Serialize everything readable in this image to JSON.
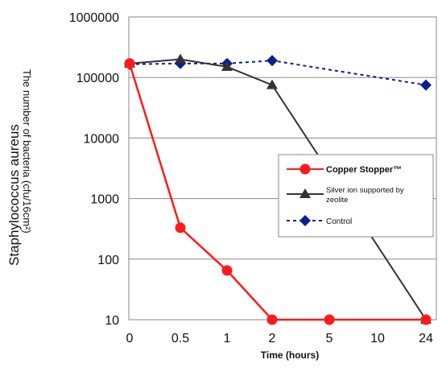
{
  "chart_data": {
    "type": "line",
    "title": "",
    "xlabel": "Time (hours)",
    "ylabel_outer": "Staphylococcus aureus",
    "ylabel_inner": "The number of bacteria (cfu/16cm²)",
    "x_tick_labels": [
      "0",
      "0.5",
      "1",
      "2",
      "5",
      "10",
      "24"
    ],
    "y_scale": "log",
    "y_tick_labels": [
      "1000000",
      "100000",
      "10000",
      "1000",
      "100",
      "10"
    ],
    "ylim": [
      10,
      1000000
    ],
    "grid": true,
    "legend_position": "center-right",
    "series": [
      {
        "name": "Copper Stopper™",
        "color": "#ff1a1a",
        "marker": "circle",
        "line_style": "solid",
        "x": [
          0,
          0.5,
          1,
          2,
          5,
          24
        ],
        "values": [
          170000,
          330,
          65,
          10,
          10,
          10
        ]
      },
      {
        "name": "Silver ion supported by zeolite",
        "color": "#333333",
        "marker": "triangle",
        "line_style": "solid",
        "x": [
          0,
          0.5,
          1,
          2,
          24
        ],
        "values": [
          170000,
          200000,
          150000,
          75000,
          10
        ]
      },
      {
        "name": "Control",
        "color": "#0a1f8f",
        "marker": "diamond",
        "line_style": "dashed",
        "x": [
          0,
          0.5,
          1,
          2,
          24
        ],
        "values": [
          165000,
          170000,
          170000,
          190000,
          75000
        ]
      }
    ]
  }
}
